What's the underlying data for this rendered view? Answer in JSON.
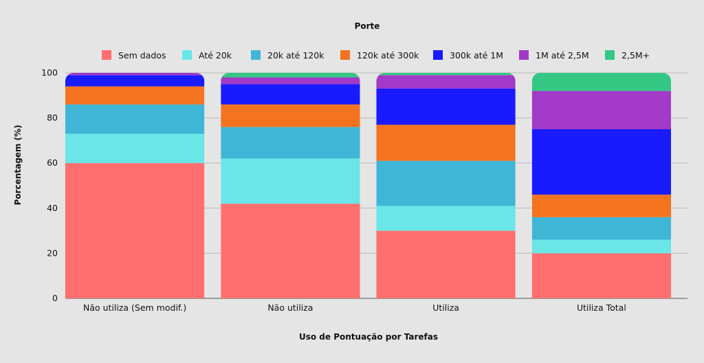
{
  "chart_data": {
    "type": "bar",
    "stacked": true,
    "legend_title": "Porte",
    "xlabel": "Uso de Pontuação por Tarefas",
    "ylabel": "Porcentagem (%)",
    "ylim": [
      0,
      100
    ],
    "yticks": [
      0,
      20,
      40,
      60,
      80,
      100
    ],
    "grid": true,
    "legend_position": "top",
    "categories": [
      "Não utiliza (Sem modif.)",
      "Não utiliza",
      "Utiliza",
      "Utiliza Total"
    ],
    "series": [
      {
        "name": "Sem dados",
        "color": "#ff6f6f",
        "values": [
          60,
          42,
          30,
          20
        ]
      },
      {
        "name": "Até 20k",
        "color": "#6ae6e8",
        "values": [
          13,
          20,
          11,
          6
        ]
      },
      {
        "name": "20k até 120k",
        "color": "#40b6d6",
        "values": [
          13,
          14,
          20,
          10
        ]
      },
      {
        "name": "120k até 300k",
        "color": "#f37321",
        "values": [
          8,
          10,
          16,
          10
        ]
      },
      {
        "name": "300k até 1M",
        "color": "#1a1aff",
        "values": [
          5,
          9,
          16,
          29
        ]
      },
      {
        "name": "1M até 2,5M",
        "color": "#a239c8",
        "values": [
          1,
          3,
          6,
          17
        ]
      },
      {
        "name": "2,5M+",
        "color": "#34c784",
        "values": [
          0,
          2,
          1,
          8
        ]
      }
    ]
  }
}
